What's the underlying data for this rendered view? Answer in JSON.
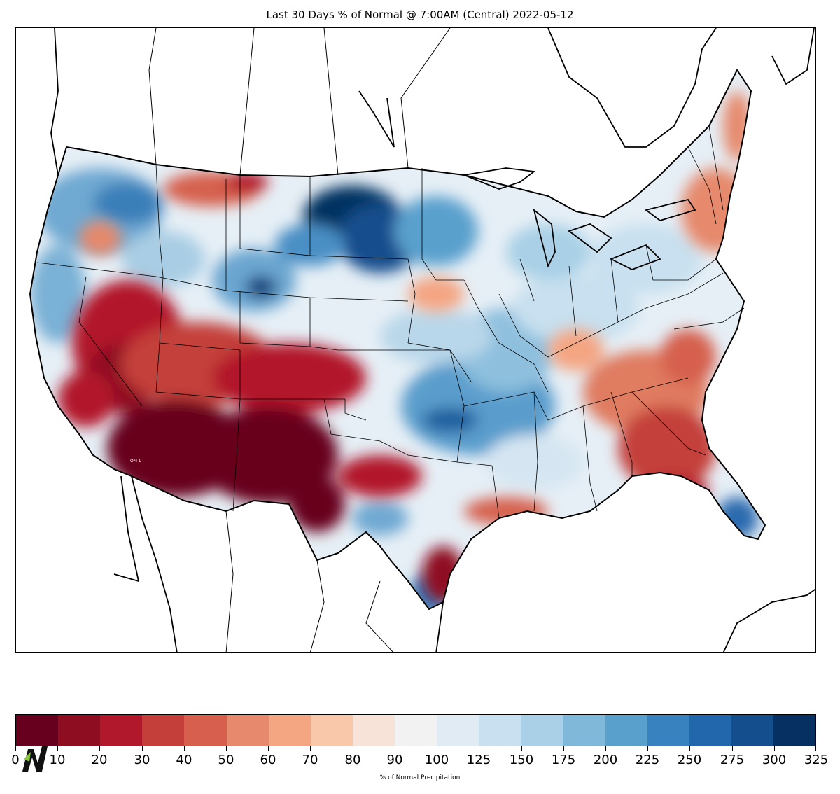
{
  "title": "Last 30 Days % of Normal @ 7:00AM (Central) 2022-05-12",
  "map": {
    "region": "Contiguous United States",
    "highlights": [
      {
        "area": "Arizona / New Mexico / West Texas",
        "category": "0-10"
      },
      {
        "area": "North Dakota",
        "category": "325+"
      },
      {
        "area": "Wyoming (central)",
        "category": "300+"
      },
      {
        "area": "Nevada / Utah / Colorado",
        "category": "10-40"
      },
      {
        "area": "Southeast coast / Florida panhandle",
        "category": "20-60"
      },
      {
        "area": "Missouri / Kansas / Arkansas",
        "category": "150-250"
      }
    ],
    "inset_text": "OM 1"
  },
  "colorbar": {
    "label": "% of Normal Precipitation",
    "ticks": [
      "0",
      "10",
      "20",
      "30",
      "40",
      "50",
      "60",
      "70",
      "80",
      "90",
      "100",
      "125",
      "150",
      "175",
      "200",
      "225",
      "250",
      "275",
      "300",
      "325"
    ],
    "colors": [
      "#67001f",
      "#8f0d21",
      "#b2182b",
      "#c43f3a",
      "#d6604d",
      "#e6896c",
      "#f4a582",
      "#f9c7a9",
      "#f7e3d8",
      "#f2f2f2",
      "#e1ebf4",
      "#c8e0ef",
      "#a9d0e6",
      "#80b8d9",
      "#5aa0cd",
      "#3882bf",
      "#2266ac",
      "#154e8c",
      "#053061"
    ]
  },
  "logo": {
    "icon": "n-logo-icon"
  }
}
